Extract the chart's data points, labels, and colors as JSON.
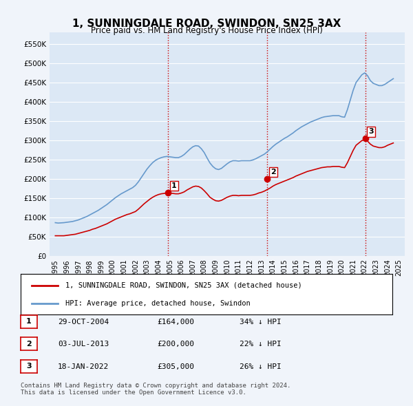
{
  "title": "1, SUNNINGDALE ROAD, SWINDON, SN25 3AX",
  "subtitle": "Price paid vs. HM Land Registry's House Price Index (HPI)",
  "background_color": "#f0f4fa",
  "plot_bg_color": "#dce8f5",
  "y_min": 0,
  "y_max": 580000,
  "y_ticks": [
    0,
    50000,
    100000,
    150000,
    200000,
    250000,
    300000,
    350000,
    400000,
    450000,
    500000,
    550000
  ],
  "y_tick_labels": [
    "£0",
    "£50K",
    "£100K",
    "£150K",
    "£200K",
    "£250K",
    "£300K",
    "£350K",
    "£400K",
    "£450K",
    "£500K",
    "£550K"
  ],
  "x_min": 1994.5,
  "x_max": 2025.5,
  "x_ticks": [
    1995,
    1996,
    1997,
    1998,
    1999,
    2000,
    2001,
    2002,
    2003,
    2004,
    2005,
    2006,
    2007,
    2008,
    2009,
    2010,
    2011,
    2012,
    2013,
    2014,
    2015,
    2016,
    2017,
    2018,
    2019,
    2020,
    2021,
    2022,
    2023,
    2024,
    2025
  ],
  "sale_dates_decimal": [
    2004.83,
    2013.5,
    2022.05
  ],
  "sale_prices": [
    164000,
    200000,
    305000
  ],
  "sale_labels": [
    "1",
    "2",
    "3"
  ],
  "sale_color": "#cc0000",
  "hpi_color": "#6699cc",
  "hpi_line_color": "#4477aa",
  "legend_label_red": "1, SUNNINGDALE ROAD, SWINDON, SN25 3AX (detached house)",
  "legend_label_blue": "HPI: Average price, detached house, Swindon",
  "table_rows": [
    {
      "num": "1",
      "date": "29-OCT-2004",
      "price": "£164,000",
      "pct": "34% ↓ HPI"
    },
    {
      "num": "2",
      "date": "03-JUL-2013",
      "price": "£200,000",
      "pct": "22% ↓ HPI"
    },
    {
      "num": "3",
      "date": "18-JAN-2022",
      "price": "£305,000",
      "pct": "26% ↓ HPI"
    }
  ],
  "footer": "Contains HM Land Registry data © Crown copyright and database right 2024.\nThis data is licensed under the Open Government Licence v3.0.",
  "vline_color": "#cc0000",
  "vline_style": ":",
  "hpi_data_x": [
    1995.0,
    1995.25,
    1995.5,
    1995.75,
    1996.0,
    1996.25,
    1996.5,
    1996.75,
    1997.0,
    1997.25,
    1997.5,
    1997.75,
    1998.0,
    1998.25,
    1998.5,
    1998.75,
    1999.0,
    1999.25,
    1999.5,
    1999.75,
    2000.0,
    2000.25,
    2000.5,
    2000.75,
    2001.0,
    2001.25,
    2001.5,
    2001.75,
    2002.0,
    2002.25,
    2002.5,
    2002.75,
    2003.0,
    2003.25,
    2003.5,
    2003.75,
    2004.0,
    2004.25,
    2004.5,
    2004.75,
    2005.0,
    2005.25,
    2005.5,
    2005.75,
    2006.0,
    2006.25,
    2006.5,
    2006.75,
    2007.0,
    2007.25,
    2007.5,
    2007.75,
    2008.0,
    2008.25,
    2008.5,
    2008.75,
    2009.0,
    2009.25,
    2009.5,
    2009.75,
    2010.0,
    2010.25,
    2010.5,
    2010.75,
    2011.0,
    2011.25,
    2011.5,
    2011.75,
    2012.0,
    2012.25,
    2012.5,
    2012.75,
    2013.0,
    2013.25,
    2013.5,
    2013.75,
    2014.0,
    2014.25,
    2014.5,
    2014.75,
    2015.0,
    2015.25,
    2015.5,
    2015.75,
    2016.0,
    2016.25,
    2016.5,
    2016.75,
    2017.0,
    2017.25,
    2017.5,
    2017.75,
    2018.0,
    2018.25,
    2018.5,
    2018.75,
    2019.0,
    2019.25,
    2019.5,
    2019.75,
    2020.0,
    2020.25,
    2020.5,
    2020.75,
    2021.0,
    2021.25,
    2021.5,
    2021.75,
    2022.0,
    2022.25,
    2022.5,
    2022.75,
    2023.0,
    2023.25,
    2023.5,
    2023.75,
    2024.0,
    2024.25,
    2024.5
  ],
  "hpi_data_y": [
    86000,
    85000,
    85500,
    86000,
    87000,
    88000,
    89000,
    91000,
    93000,
    96000,
    99000,
    102000,
    106000,
    110000,
    114000,
    118000,
    123000,
    128000,
    133000,
    139000,
    145000,
    151000,
    156000,
    161000,
    165000,
    169000,
    173000,
    177000,
    183000,
    192000,
    203000,
    214000,
    225000,
    234000,
    242000,
    248000,
    252000,
    255000,
    257000,
    258000,
    257000,
    256000,
    255000,
    255000,
    258000,
    263000,
    270000,
    277000,
    283000,
    286000,
    285000,
    278000,
    268000,
    254000,
    241000,
    232000,
    226000,
    224000,
    227000,
    233000,
    239000,
    244000,
    247000,
    247000,
    246000,
    247000,
    247000,
    247000,
    247000,
    249000,
    252000,
    256000,
    260000,
    264000,
    270000,
    277000,
    284000,
    290000,
    295000,
    300000,
    305000,
    309000,
    314000,
    319000,
    325000,
    330000,
    335000,
    339000,
    343000,
    347000,
    350000,
    353000,
    356000,
    359000,
    361000,
    362000,
    363000,
    364000,
    364000,
    364000,
    361000,
    360000,
    380000,
    405000,
    430000,
    450000,
    460000,
    470000,
    475000,
    468000,
    455000,
    448000,
    445000,
    442000,
    442000,
    445000,
    450000,
    455000,
    460000
  ],
  "red_data_x": [
    1995.0,
    1995.25,
    1995.5,
    1995.75,
    1996.0,
    1996.25,
    1996.5,
    1996.75,
    1997.0,
    1997.25,
    1997.5,
    1997.75,
    1998.0,
    1998.25,
    1998.5,
    1998.75,
    1999.0,
    1999.25,
    1999.5,
    1999.75,
    2000.0,
    2000.25,
    2000.5,
    2000.75,
    2001.0,
    2001.25,
    2001.5,
    2001.75,
    2002.0,
    2002.25,
    2002.5,
    2002.75,
    2003.0,
    2003.25,
    2003.5,
    2003.75,
    2004.0,
    2004.25,
    2004.5,
    2004.75,
    2005.0,
    2005.25,
    2005.5,
    2005.75,
    2006.0,
    2006.25,
    2006.5,
    2006.75,
    2007.0,
    2007.25,
    2007.5,
    2007.75,
    2008.0,
    2008.25,
    2008.5,
    2008.75,
    2009.0,
    2009.25,
    2009.5,
    2009.75,
    2010.0,
    2010.25,
    2010.5,
    2010.75,
    2011.0,
    2011.25,
    2011.5,
    2011.75,
    2012.0,
    2012.25,
    2012.5,
    2012.75,
    2013.0,
    2013.25,
    2013.5,
    2013.75,
    2014.0,
    2014.25,
    2014.5,
    2014.75,
    2015.0,
    2015.25,
    2015.5,
    2015.75,
    2016.0,
    2016.25,
    2016.5,
    2016.75,
    2017.0,
    2017.25,
    2017.5,
    2017.75,
    2018.0,
    2018.25,
    2018.5,
    2018.75,
    2019.0,
    2019.25,
    2019.5,
    2019.75,
    2020.0,
    2020.25,
    2020.5,
    2020.75,
    2021.0,
    2021.25,
    2021.5,
    2021.75,
    2022.0,
    2022.25,
    2022.5,
    2022.75,
    2023.0,
    2023.25,
    2023.5,
    2023.75,
    2024.0,
    2024.25,
    2024.5
  ],
  "red_data_y": [
    52000,
    52000,
    52000,
    52000,
    53000,
    54000,
    55000,
    56000,
    58000,
    60000,
    62000,
    64000,
    66000,
    69000,
    71000,
    74000,
    77000,
    80000,
    83000,
    87000,
    91000,
    95000,
    98000,
    101000,
    104000,
    107000,
    109000,
    112000,
    115000,
    121000,
    128000,
    135000,
    141000,
    147000,
    152000,
    156000,
    159000,
    161000,
    162000,
    163000,
    162000,
    162000,
    161000,
    161000,
    163000,
    166000,
    171000,
    175000,
    179000,
    181000,
    180000,
    176000,
    169000,
    161000,
    152000,
    147000,
    143000,
    142000,
    144000,
    148000,
    152000,
    155000,
    157000,
    157000,
    156000,
    157000,
    157000,
    157000,
    157000,
    158000,
    160000,
    163000,
    165000,
    168000,
    172000,
    176000,
    181000,
    185000,
    188000,
    191000,
    194000,
    197000,
    200000,
    203000,
    207000,
    210000,
    213000,
    216000,
    219000,
    221000,
    223000,
    225000,
    227000,
    229000,
    230000,
    231000,
    231000,
    232000,
    232000,
    232000,
    230000,
    229000,
    242000,
    258000,
    274000,
    287000,
    293000,
    299000,
    302000,
    298000,
    290000,
    285000,
    283000,
    281000,
    281000,
    283000,
    287000,
    290000,
    293000
  ]
}
